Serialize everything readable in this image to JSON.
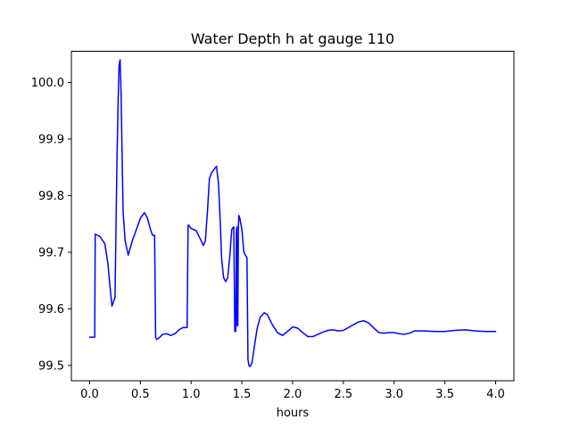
{
  "chart_data": {
    "type": "line",
    "title": "Water Depth h at gauge 110",
    "xlabel": "hours",
    "ylabel": "",
    "xlim": [
      -0.18,
      4.18
    ],
    "ylim": [
      99.473,
      100.055
    ],
    "xticks": [
      0.0,
      0.5,
      1.0,
      1.5,
      2.0,
      2.5,
      3.0,
      3.5,
      4.0
    ],
    "xtick_labels": [
      "0.0",
      "0.5",
      "1.0",
      "1.5",
      "2.0",
      "2.5",
      "3.0",
      "3.5",
      "4.0"
    ],
    "yticks": [
      99.5,
      99.6,
      99.7,
      99.8,
      99.9,
      100.0
    ],
    "ytick_labels": [
      "99.5",
      "99.6",
      "99.7",
      "99.8",
      "99.9",
      "100.0"
    ],
    "grid": false,
    "series": [
      {
        "color": "#0000ff",
        "x": [
          0.0,
          0.05,
          0.055,
          0.1,
          0.15,
          0.18,
          0.2,
          0.22,
          0.25,
          0.26,
          0.27,
          0.28,
          0.29,
          0.3,
          0.31,
          0.32,
          0.33,
          0.35,
          0.38,
          0.42,
          0.46,
          0.5,
          0.54,
          0.57,
          0.6,
          0.62,
          0.64,
          0.65,
          0.655,
          0.66,
          0.68,
          0.72,
          0.76,
          0.8,
          0.84,
          0.88,
          0.92,
          0.96,
          0.97,
          0.975,
          1.0,
          1.05,
          1.1,
          1.12,
          1.14,
          1.16,
          1.18,
          1.2,
          1.22,
          1.25,
          1.27,
          1.29,
          1.3,
          1.32,
          1.34,
          1.36,
          1.38,
          1.4,
          1.42,
          1.43,
          1.44,
          1.445,
          1.45,
          1.455,
          1.46,
          1.465,
          1.47,
          1.48,
          1.5,
          1.52,
          1.55,
          1.56,
          1.57,
          1.58,
          1.6,
          1.62,
          1.65,
          1.68,
          1.72,
          1.75,
          1.8,
          1.85,
          1.9,
          1.95,
          2.0,
          2.05,
          2.1,
          2.15,
          2.2,
          2.25,
          2.3,
          2.35,
          2.4,
          2.45,
          2.5,
          2.55,
          2.6,
          2.65,
          2.7,
          2.75,
          2.8,
          2.85,
          2.9,
          2.95,
          3.0,
          3.05,
          3.1,
          3.15,
          3.2,
          3.3,
          3.4,
          3.5,
          3.6,
          3.7,
          3.8,
          3.9,
          4.0
        ],
        "y": [
          99.55,
          99.55,
          99.732,
          99.728,
          99.715,
          99.68,
          99.64,
          99.605,
          99.62,
          99.75,
          99.87,
          99.96,
          100.03,
          100.04,
          99.98,
          99.87,
          99.77,
          99.72,
          99.695,
          99.72,
          99.74,
          99.76,
          99.77,
          99.76,
          99.74,
          99.73,
          99.73,
          99.55,
          99.548,
          99.546,
          99.548,
          99.555,
          99.556,
          99.553,
          99.556,
          99.563,
          99.567,
          99.567,
          99.748,
          99.748,
          99.742,
          99.738,
          99.72,
          99.712,
          99.72,
          99.77,
          99.83,
          99.84,
          99.845,
          99.852,
          99.82,
          99.74,
          99.69,
          99.655,
          99.648,
          99.655,
          99.69,
          99.74,
          99.745,
          99.56,
          99.56,
          99.735,
          99.745,
          99.57,
          99.57,
          99.74,
          99.765,
          99.76,
          99.74,
          99.7,
          99.69,
          99.51,
          99.5,
          99.498,
          99.505,
          99.53,
          99.565,
          99.585,
          99.593,
          99.59,
          99.572,
          99.558,
          99.553,
          99.56,
          99.568,
          99.566,
          99.558,
          99.551,
          99.551,
          99.555,
          99.559,
          99.562,
          99.563,
          99.561,
          99.562,
          99.567,
          99.572,
          99.577,
          99.579,
          99.575,
          99.566,
          99.558,
          99.557,
          99.558,
          99.558,
          99.556,
          99.555,
          99.557,
          99.561,
          99.561,
          99.56,
          99.56,
          99.562,
          99.563,
          99.561,
          99.56,
          99.56
        ]
      }
    ]
  }
}
